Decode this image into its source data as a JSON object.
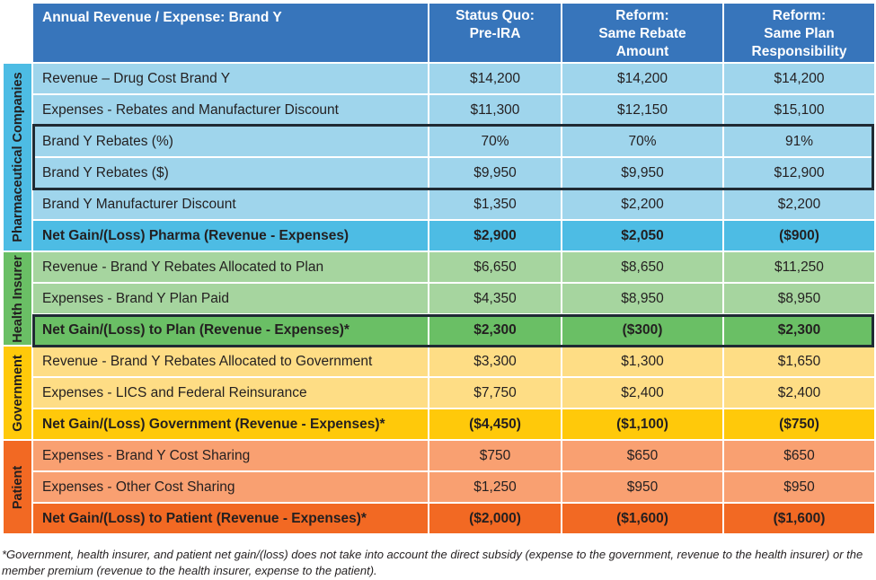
{
  "table": {
    "title": "Annual Revenue / Expense: Brand Y",
    "columns": [
      {
        "line1": "Status Quo:",
        "line2": "Pre-IRA",
        "line3": ""
      },
      {
        "line1": "Reform:",
        "line2": "Same Rebate",
        "line3": "Amount"
      },
      {
        "line1": "Reform:",
        "line2": "Same Plan",
        "line3": "Responsibility"
      }
    ],
    "groups": {
      "pharma": {
        "label": "Pharmaceutical Companies",
        "color": "#4dbce4",
        "rows": [
          {
            "label": "Revenue – Drug Cost Brand Y",
            "values": [
              "$14,200",
              "$14,200",
              "$14,200"
            ]
          },
          {
            "label": "Expenses - Rebates and Manufacturer Discount",
            "values": [
              "$11,300",
              "$12,150",
              "$15,100"
            ]
          },
          {
            "label": "Brand Y Rebates (%)",
            "values": [
              "70%",
              "70%",
              "91%"
            ]
          },
          {
            "label": "Brand Y Rebates ($)",
            "values": [
              "$9,950",
              "$9,950",
              "$12,900"
            ]
          },
          {
            "label": "Brand Y Manufacturer Discount",
            "values": [
              "$1,350",
              "$2,200",
              "$2,200"
            ]
          },
          {
            "label": "Net Gain/(Loss) Pharma (Revenue - Expenses)",
            "values": [
              "$2,900",
              "$2,050",
              "($900)"
            ]
          }
        ]
      },
      "insurer": {
        "label": "Health Insurer",
        "color": "#6abf65",
        "rows": [
          {
            "label": "Revenue - Brand Y Rebates Allocated to Plan",
            "values": [
              "$6,650",
              "$8,650",
              "$11,250"
            ]
          },
          {
            "label": "Expenses - Brand Y Plan Paid",
            "values": [
              "$4,350",
              "$8,950",
              "$8,950"
            ]
          },
          {
            "label": "Net Gain/(Loss) to Plan (Revenue - Expenses)*",
            "values": [
              "$2,300",
              "($300)",
              "$2,300"
            ]
          }
        ]
      },
      "government": {
        "label": "Government",
        "color": "#ffc90a",
        "rows": [
          {
            "label": "Revenue - Brand Y Rebates Allocated to Government",
            "values": [
              "$3,300",
              "$1,300",
              "$1,650"
            ]
          },
          {
            "label": "Expenses - LICS and Federal Reinsurance",
            "values": [
              "$7,750",
              "$2,400",
              "$2,400"
            ]
          },
          {
            "label": "Net Gain/(Loss) Government (Revenue - Expenses)*",
            "values": [
              "($4,450)",
              "($1,100)",
              "($750)"
            ]
          }
        ]
      },
      "patient": {
        "label": "Patient",
        "color": "#f26923",
        "rows": [
          {
            "label": "Expenses - Brand Y Cost Sharing",
            "values": [
              "$750",
              "$650",
              "$650"
            ]
          },
          {
            "label": "Expenses - Other Cost Sharing",
            "values": [
              "$1,250",
              "$950",
              "$950"
            ]
          },
          {
            "label": "Net Gain/(Loss) to Patient (Revenue - Expenses)*",
            "values": [
              "($2,000)",
              "($1,600)",
              "($1,600)"
            ]
          }
        ]
      }
    },
    "header_color": "#3775bb",
    "highlight_border_color": "#1f2a33"
  },
  "footnote": "*Government, health insurer, and patient net gain/(loss) does not take into account the direct subsidy (expense to the government, revenue to the health insurer) or the member premium (revenue to the health insurer, expense to the patient)."
}
